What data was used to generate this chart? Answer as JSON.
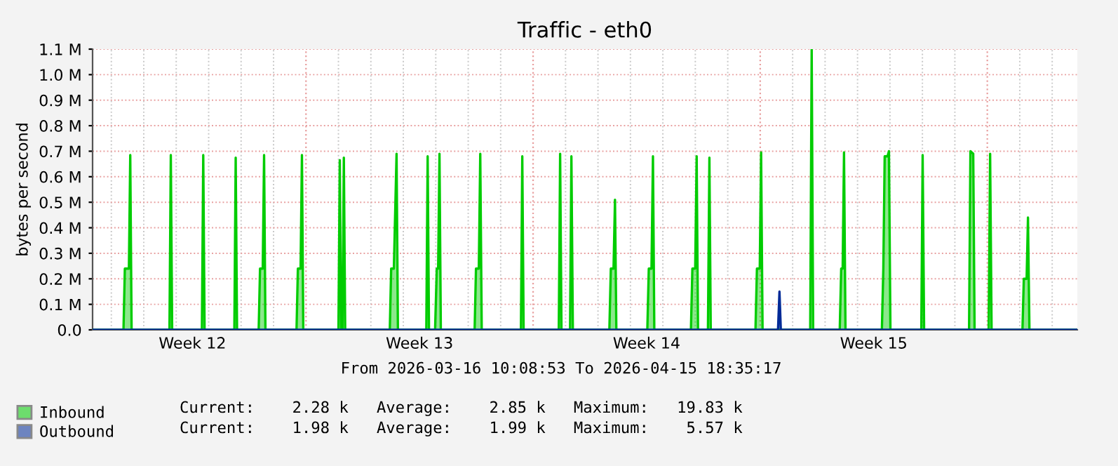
{
  "chart_data": {
    "type": "area",
    "title": "Traffic - eth0",
    "ylabel": "bytes per second",
    "xlim": [
      "2026-03-16T10:08",
      "2026-04-15T18:35"
    ],
    "ylim": [
      0,
      1.1
    ],
    "yticks": [
      {
        "value": 0,
        "label": "0.0"
      },
      {
        "value": 0.1,
        "label": "0.1 M"
      },
      {
        "value": 0.2,
        "label": "0.2 M"
      },
      {
        "value": 0.3,
        "label": "0.3 M"
      },
      {
        "value": 0.4,
        "label": "0.4 M"
      },
      {
        "value": 0.5,
        "label": "0.5 M"
      },
      {
        "value": 0.6,
        "label": "0.6 M"
      },
      {
        "value": 0.7,
        "label": "0.7 M"
      },
      {
        "value": 0.8,
        "label": "0.8 M"
      },
      {
        "value": 0.9,
        "label": "0.9 M"
      },
      {
        "value": 1.0,
        "label": "1.0 M"
      },
      {
        "value": 1.1,
        "label": "1.1 M"
      }
    ],
    "xticks": [
      {
        "value": "2026-03-19T12:00",
        "label": "Week 12"
      },
      {
        "value": "2026-03-26T12:00",
        "label": "Week 13"
      },
      {
        "value": "2026-04-02T12:00",
        "label": "Week 14"
      },
      {
        "value": "2026-04-09T12:00",
        "label": "Week 15"
      },
      {
        "value": "2026-03-17",
        "label": null
      },
      {
        "value": "2026-03-18",
        "label": null
      },
      {
        "value": "2026-03-19",
        "label": null
      },
      {
        "value": "2026-03-20",
        "label": null
      },
      {
        "value": "2026-03-21",
        "label": null
      },
      {
        "value": "2026-03-22",
        "label": null
      },
      {
        "value": "2026-03-24",
        "label": null
      },
      {
        "value": "2026-03-25",
        "label": null
      },
      {
        "value": "2026-03-26",
        "label": null
      },
      {
        "value": "2026-03-27",
        "label": null
      },
      {
        "value": "2026-03-28",
        "label": null
      },
      {
        "value": "2026-03-29",
        "label": null
      },
      {
        "value": "2026-03-31",
        "label": null
      },
      {
        "value": "2026-04-01",
        "label": null
      },
      {
        "value": "2026-04-02",
        "label": null
      },
      {
        "value": "2026-04-03",
        "label": null
      },
      {
        "value": "2026-04-04",
        "label": null
      },
      {
        "value": "2026-04-05",
        "label": null
      },
      {
        "value": "2026-04-07",
        "label": null
      },
      {
        "value": "2026-04-08",
        "label": null
      },
      {
        "value": "2026-04-09",
        "label": null
      },
      {
        "value": "2026-04-10",
        "label": null
      },
      {
        "value": "2026-04-11",
        "label": null
      },
      {
        "value": "2026-04-12",
        "label": null
      },
      {
        "value": "2026-04-14",
        "label": null
      },
      {
        "value": "2026-04-15",
        "label": null
      }
    ],
    "ref_lines": [
      {
        "axis": "x",
        "value": "2026-03-23",
        "label": null,
        "color": "#e8a0a0",
        "line_style": "dotted"
      },
      {
        "axis": "x",
        "value": "2026-03-30",
        "label": null,
        "color": "#e8a0a0",
        "line_style": "dotted"
      },
      {
        "axis": "x",
        "value": "2026-04-06",
        "label": null,
        "color": "#e8a0a0",
        "line_style": "dotted"
      },
      {
        "axis": "x",
        "value": "2026-04-13",
        "label": null,
        "color": "#e8a0a0",
        "line_style": "dotted"
      }
    ],
    "grid": true,
    "legend": "bottom",
    "series": [
      {
        "name": "Inbound",
        "color": "#00cc00",
        "x": [
          "2026-03-16T10:08",
          "2026-03-17T09:00",
          "2026-03-17T10:00",
          "2026-03-17T13:00",
          "2026-03-17T14:00",
          "2026-03-17T15:00",
          "2026-03-18T19:00",
          "2026-03-18T20:00",
          "2026-03-18T21:00",
          "2026-03-19T19:00",
          "2026-03-19T20:00",
          "2026-03-19T21:00",
          "2026-03-20T19:00",
          "2026-03-20T20:00",
          "2026-03-20T21:00",
          "2026-03-21T13:00",
          "2026-03-21T14:00",
          "2026-03-21T16:00",
          "2026-03-21T17:00",
          "2026-03-21T18:00",
          "2026-03-22T17:00",
          "2026-03-22T18:00",
          "2026-03-22T20:00",
          "2026-03-22T21:00",
          "2026-03-22T22:00",
          "2026-03-24T00:00",
          "2026-03-24T01:00",
          "2026-03-24T02:00",
          "2026-03-24T03:00",
          "2026-03-24T04:00",
          "2026-03-24T05:00",
          "2026-03-25T14:00",
          "2026-03-25T15:00",
          "2026-03-25T17:00",
          "2026-03-25T19:00",
          "2026-03-25T20:00",
          "2026-03-26T17:00",
          "2026-03-26T18:00",
          "2026-03-26T19:00",
          "2026-03-26T23:30",
          "2026-03-27T00:45",
          "2026-03-27T01:45",
          "2026-03-27T02:45",
          "2026-03-27T03:45",
          "2026-03-28T04:45",
          "2026-03-28T05:45",
          "2026-03-28T07:50",
          "2026-03-28T08:55",
          "2026-03-28T10:00",
          "2026-03-29T15:00",
          "2026-03-29T16:00",
          "2026-03-29T17:00",
          "2026-03-30T19:00",
          "2026-03-30T20:00",
          "2026-03-30T21:00",
          "2026-03-31T03:20",
          "2026-03-31T04:20",
          "2026-03-31T05:25",
          "2026-04-01T08:25",
          "2026-04-01T09:30",
          "2026-04-01T11:30",
          "2026-04-01T12:35",
          "2026-04-01T13:35",
          "2026-04-02T12:30",
          "2026-04-02T13:35",
          "2026-04-02T15:35",
          "2026-04-02T16:40",
          "2026-04-02T17:40",
          "2026-04-03T20:45",
          "2026-04-03T21:50",
          "2026-04-03T23:55",
          "2026-04-04T01:00",
          "2026-04-04T02:00",
          "2026-04-04T09:20",
          "2026-04-04T10:25",
          "2026-04-04T11:25",
          "2026-04-05T20:30",
          "2026-04-05T21:35",
          "2026-04-05T23:40",
          "2026-04-06T00:40",
          "2026-04-06T01:45",
          "2026-04-07T13:00",
          "2026-04-07T14:05",
          "2026-04-07T15:10",
          "2026-04-08T10:50",
          "2026-04-08T11:55",
          "2026-04-08T13:00",
          "2026-04-08T14:00",
          "2026-04-08T15:05",
          "2026-04-09T18:00",
          "2026-04-09T19:05",
          "2026-04-09T20:05",
          "2026-04-09T22:10",
          "2026-04-09T23:15",
          "2026-04-10T00:20",
          "2026-04-10T23:10",
          "2026-04-11T00:10",
          "2026-04-11T01:15",
          "2026-04-12T10:30",
          "2026-04-12T11:30",
          "2026-04-12T13:35",
          "2026-04-12T14:35",
          "2026-04-13T01:00",
          "2026-04-13T02:05",
          "2026-04-13T03:10",
          "2026-04-14T02:00",
          "2026-04-14T03:00",
          "2026-04-14T05:05",
          "2026-04-14T06:05",
          "2026-04-14T07:10",
          "2026-04-15T18:35"
        ],
        "values": [
          0,
          0,
          0.24,
          0.24,
          0.685,
          0,
          0,
          0.685,
          0,
          0,
          0.685,
          0,
          0,
          0.675,
          0,
          0,
          0.24,
          0.24,
          0.685,
          0,
          0,
          0.24,
          0.24,
          0.685,
          0,
          0,
          0.665,
          0,
          0,
          0.675,
          0,
          0,
          0.24,
          0.24,
          0.69,
          0,
          0,
          0.68,
          0,
          0,
          0.24,
          0.24,
          0.69,
          0,
          0,
          0.24,
          0.24,
          0.69,
          0,
          0,
          0.68,
          0,
          0,
          0.69,
          0,
          0,
          0.68,
          0,
          0,
          0.24,
          0.24,
          0.51,
          0,
          0,
          0.24,
          0.24,
          0.68,
          0,
          0,
          0.24,
          0.24,
          0.68,
          0,
          0,
          0.675,
          0,
          0,
          0.24,
          0.24,
          0.695,
          0,
          0,
          1.1,
          0,
          0,
          0.24,
          0.24,
          0.695,
          0,
          0,
          0.24,
          0.68,
          0.68,
          0.7,
          0,
          0,
          0.685,
          0,
          0,
          0.7,
          0.69,
          0,
          0,
          0.69,
          0,
          0,
          0.2,
          0.2,
          0.44,
          0,
          0
        ]
      },
      {
        "name": "Outbound",
        "color": "#002a97",
        "x": [
          "2026-03-16T10:08",
          "2026-04-06T13:10",
          "2026-04-06T14:15",
          "2026-04-06T15:15",
          "2026-04-15T18:35"
        ],
        "values": [
          0,
          0,
          0.15,
          0,
          0
        ]
      }
    ],
    "annotations": [
      "From 2026-03-16 10:08:53 To 2026-04-15 18:35:17",
      "Current:    2.28 k   Average:    2.85 k   Maximum:   19.83 k",
      "Current:    1.98 k   Average:    1.99 k   Maximum:    5.57 k"
    ]
  }
}
